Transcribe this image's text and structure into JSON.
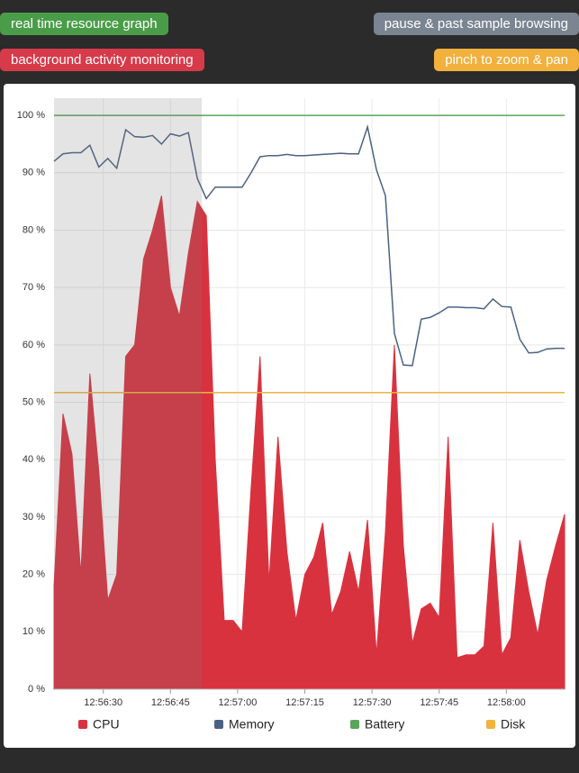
{
  "badges": {
    "realtime": "real time resource graph",
    "pause": "pause & past sample browsing",
    "background": "background activity monitoring",
    "pinch": "pinch to zoom & pan"
  },
  "chart_data": {
    "type": "area-line",
    "selection": [
      "12:56:19",
      "12:56:52"
    ],
    "x": [
      "12:56:19",
      "12:56:21",
      "12:56:23",
      "12:56:25",
      "12:56:27",
      "12:56:29",
      "12:56:31",
      "12:56:33",
      "12:56:35",
      "12:56:37",
      "12:56:39",
      "12:56:41",
      "12:56:43",
      "12:56:45",
      "12:56:47",
      "12:56:49",
      "12:56:51",
      "12:56:53",
      "12:56:55",
      "12:56:57",
      "12:56:59",
      "12:57:01",
      "12:57:03",
      "12:57:05",
      "12:57:07",
      "12:57:09",
      "12:57:11",
      "12:57:13",
      "12:57:15",
      "12:57:17",
      "12:57:19",
      "12:57:21",
      "12:57:23",
      "12:57:25",
      "12:57:27",
      "12:57:29",
      "12:57:31",
      "12:57:33",
      "12:57:35",
      "12:57:37",
      "12:57:39",
      "12:57:41",
      "12:57:43",
      "12:57:45",
      "12:57:47",
      "12:57:49",
      "12:57:51",
      "12:57:53",
      "12:57:55",
      "12:57:57",
      "12:57:59",
      "12:58:01",
      "12:58:03",
      "12:58:05",
      "12:58:07",
      "12:58:09",
      "12:58:11",
      "12:58:13"
    ],
    "series": [
      {
        "name": "CPU",
        "color": "#d9323f",
        "values": [
          18,
          48,
          41,
          20,
          55,
          38,
          15.5,
          20,
          58,
          60,
          75,
          80,
          86,
          70,
          65,
          76,
          85,
          82.5,
          40,
          12,
          12,
          10,
          35,
          58,
          18.5,
          44,
          24,
          12,
          20,
          23,
          29,
          13,
          17,
          24,
          17,
          29.5,
          6,
          27.5,
          60,
          25,
          8,
          14,
          15,
          12.5,
          44,
          5.5,
          6,
          6,
          7.5,
          29,
          6,
          9,
          26,
          17,
          9.5,
          19,
          25,
          30.5
        ]
      },
      {
        "name": "Memory",
        "color": "#4a6282",
        "values": [
          92,
          93.3,
          93.5,
          93.5,
          94.8,
          91,
          92.5,
          90.8,
          97.5,
          96.3,
          96.2,
          96.5,
          95,
          96.8,
          96.4,
          97,
          89,
          85.5,
          87.5,
          87.5,
          87.5,
          87.5,
          90,
          92.8,
          93,
          93,
          93.2,
          93,
          93,
          93.1,
          93.2,
          93.3,
          93.4,
          93.3,
          93.3,
          98,
          90.5,
          86,
          62,
          56.5,
          56.4,
          64.5,
          64.8,
          65.6,
          66.6,
          66.6,
          66.5,
          66.5,
          66.3,
          68,
          66.7,
          66.6,
          61,
          58.6,
          58.7,
          59.3,
          59.4,
          59.4
        ]
      },
      {
        "name": "Battery",
        "color": "#5aa55a",
        "values": [
          100,
          100,
          100,
          100,
          100,
          100,
          100,
          100,
          100,
          100,
          100,
          100,
          100,
          100,
          100,
          100,
          100,
          100,
          100,
          100,
          100,
          100,
          100,
          100,
          100,
          100,
          100,
          100,
          100,
          100,
          100,
          100,
          100,
          100,
          100,
          100,
          100,
          100,
          100,
          100,
          100,
          100,
          100,
          100,
          100,
          100,
          100,
          100,
          100,
          100,
          100,
          100,
          100,
          100,
          100,
          100,
          100,
          100
        ]
      },
      {
        "name": "Disk",
        "color": "#f0b43c",
        "values": [
          51.7,
          51.7,
          51.7,
          51.7,
          51.7,
          51.7,
          51.7,
          51.7,
          51.7,
          51.7,
          51.7,
          51.7,
          51.7,
          51.7,
          51.7,
          51.7,
          51.7,
          51.7,
          51.7,
          51.7,
          51.7,
          51.7,
          51.7,
          51.7,
          51.7,
          51.7,
          51.7,
          51.7,
          51.7,
          51.7,
          51.7,
          51.7,
          51.7,
          51.7,
          51.7,
          51.7,
          51.7,
          51.7,
          51.7,
          51.7,
          51.7,
          51.7,
          51.7,
          51.7,
          51.7,
          51.7,
          51.7,
          51.7,
          51.7,
          51.7,
          51.7,
          51.7,
          51.7,
          51.7,
          51.7,
          51.7,
          51.7,
          51.7
        ]
      }
    ],
    "xlim": [
      "12:56:19",
      "12:58:13"
    ],
    "xticks": [
      "12:56:30",
      "12:56:45",
      "12:57:00",
      "12:57:15",
      "12:57:30",
      "12:57:45",
      "12:58:00"
    ],
    "ylim": [
      0,
      103
    ],
    "yticks": [
      {
        "value": 0,
        "label": "0 %"
      },
      {
        "value": 10,
        "label": "10 %"
      },
      {
        "value": 20,
        "label": "20 %"
      },
      {
        "value": 30,
        "label": "30 %"
      },
      {
        "value": 40,
        "label": "40 %"
      },
      {
        "value": 50,
        "label": "50 %"
      },
      {
        "value": 60,
        "label": "60 %"
      },
      {
        "value": 70,
        "label": "70 %"
      },
      {
        "value": 80,
        "label": "80 %"
      },
      {
        "value": 90,
        "label": "90 %"
      },
      {
        "value": 100,
        "label": "100 %"
      }
    ],
    "grid": true
  }
}
